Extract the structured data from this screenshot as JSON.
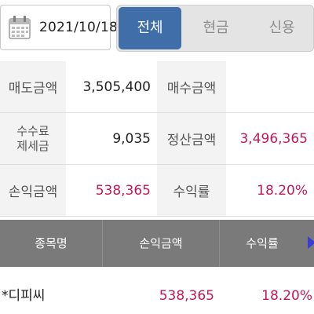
{
  "header": {
    "date": "2021/10/18",
    "tabs": [
      {
        "label": "전체",
        "active": true
      },
      {
        "label": "현금",
        "active": false
      },
      {
        "label": "신용",
        "active": false
      }
    ]
  },
  "summary": {
    "sell_amount_label": "매도금액",
    "sell_amount": "3,505,400",
    "buy_amount_label": "매수금액",
    "buy_amount": "",
    "fee_label_line1": "수수료",
    "fee_label_line2": "제세금",
    "fee": "9,035",
    "settle_label": "정산금액",
    "settle": "3,496,365",
    "pnl_label": "손익금액",
    "pnl": "538,365",
    "return_label": "수익률",
    "return": "18.20%"
  },
  "table": {
    "headers": [
      "종목명",
      "손익금액",
      "수익률"
    ],
    "rows": [
      {
        "name": "*디피씨",
        "pnl": "538,365",
        "return": "18.20%"
      }
    ]
  },
  "colors": {
    "accent": "#3f6ea8",
    "profit": "#c2185b",
    "header_bg": "#7a7a7a"
  }
}
